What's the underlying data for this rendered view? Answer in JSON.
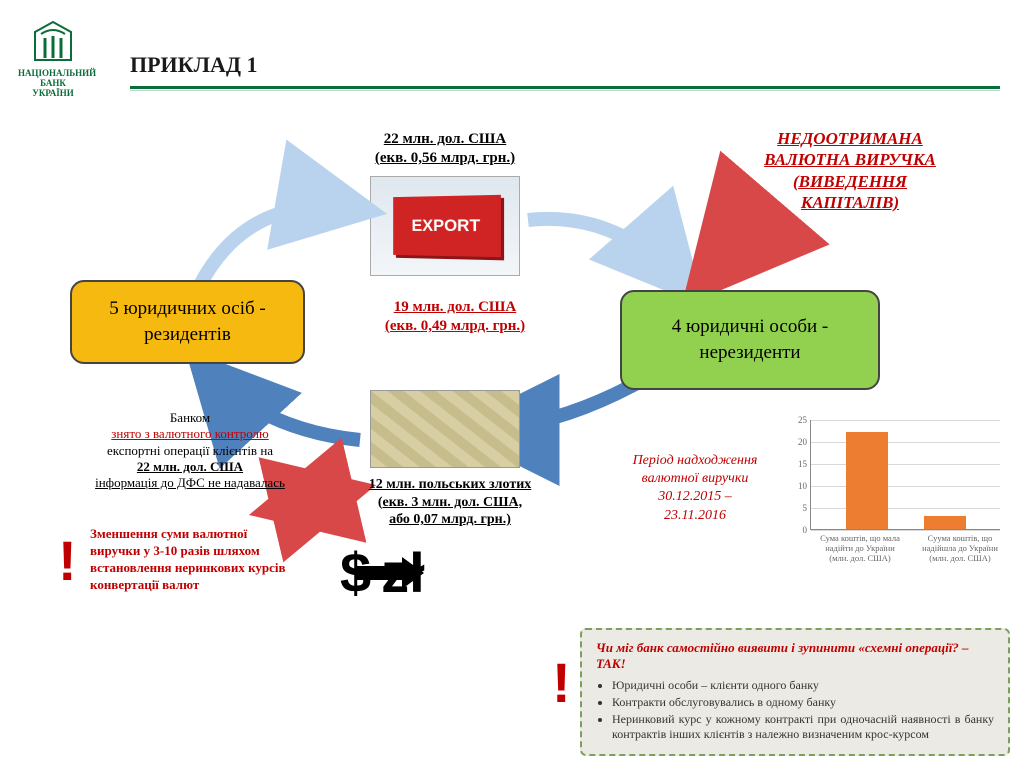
{
  "logo": {
    "line1": "НАЦІОНАЛЬНИЙ",
    "line2": "БАНК",
    "line3": "УКРАЇНИ",
    "color": "#0b6e3a"
  },
  "title": "ПРИКЛАД 1",
  "labels": {
    "top_amount_l1": "22 млн. дол. США",
    "top_amount_l2": "(екв. 0,56 млрд. грн.)",
    "mid_amount_l1": "19 млн. дол. США",
    "mid_amount_l2": "(екв. 0,49 млрд. грн.)",
    "pln_l1": "12 млн. польських злотих",
    "pln_l2": "(екв. 3 млн. дол. США,",
    "pln_l3": "або 0,07 млрд. грн.)"
  },
  "warn_title": {
    "l1": "НЕДООТРИМАНА",
    "l2": "ВАЛЮТНА ВИРУЧКА",
    "l3": "(ВИВЕДЕННЯ",
    "l4": "КАПІТАЛІВ)"
  },
  "boxes": {
    "residents": "5 юридичних осіб - резидентів",
    "nonresidents": "4 юридичні особи - нерезиденти"
  },
  "bank_note": {
    "l1": "Банком",
    "l2": "знято з валютного контролю",
    "l3": "експортні операції клієнтів на",
    "l4": "22 млн. дол. США",
    "l5": "інформація до ДФС не надавалась"
  },
  "reduce_note": "Зменшення суми валютної виручки у 3-10 разів шляхом встановлення неринкових курсів конвертації валют",
  "period": {
    "l1": "Період надходження",
    "l2": "валютної виручки",
    "l3": "30.12.2015 –",
    "l4": "23.11.2016"
  },
  "export_label": "EXPORT",
  "currency": {
    "from": "$",
    "to": "zł"
  },
  "chart": {
    "type": "bar",
    "ylim": [
      0,
      25
    ],
    "ytick_step": 5,
    "bar_color": "#ed7d31",
    "grid_color": "#d9d9d9",
    "axis_color": "#888888",
    "label_color": "#666666",
    "categories": [
      "Сума коштів, що мала надійти до України (млн. дол. США)",
      "Суума коштів, що надійшла до України (млн. дол. США)"
    ],
    "values": [
      22,
      3
    ]
  },
  "question": {
    "q": "Чи міг банк самостійно виявити і зупинити «схемні операції? – ТАК!",
    "bullets": [
      "Юридичні особи – клієнти одного банку",
      "Контракти обслуговувались в одному банку",
      "Неринковий курс у кожному контракті при одночасній наявності в банку контрактів інших клієнтів з належно визначеним крос-курсом"
    ]
  },
  "colors": {
    "green": "#0b6e3a",
    "red": "#c00000",
    "box_yellow": "#f5b90f",
    "box_green": "#92d050",
    "arrow_blue_light": "#b9d3ee",
    "arrow_blue": "#4f81bd",
    "arrow_red": "#d94848",
    "arrow_red2": "#e06666"
  }
}
